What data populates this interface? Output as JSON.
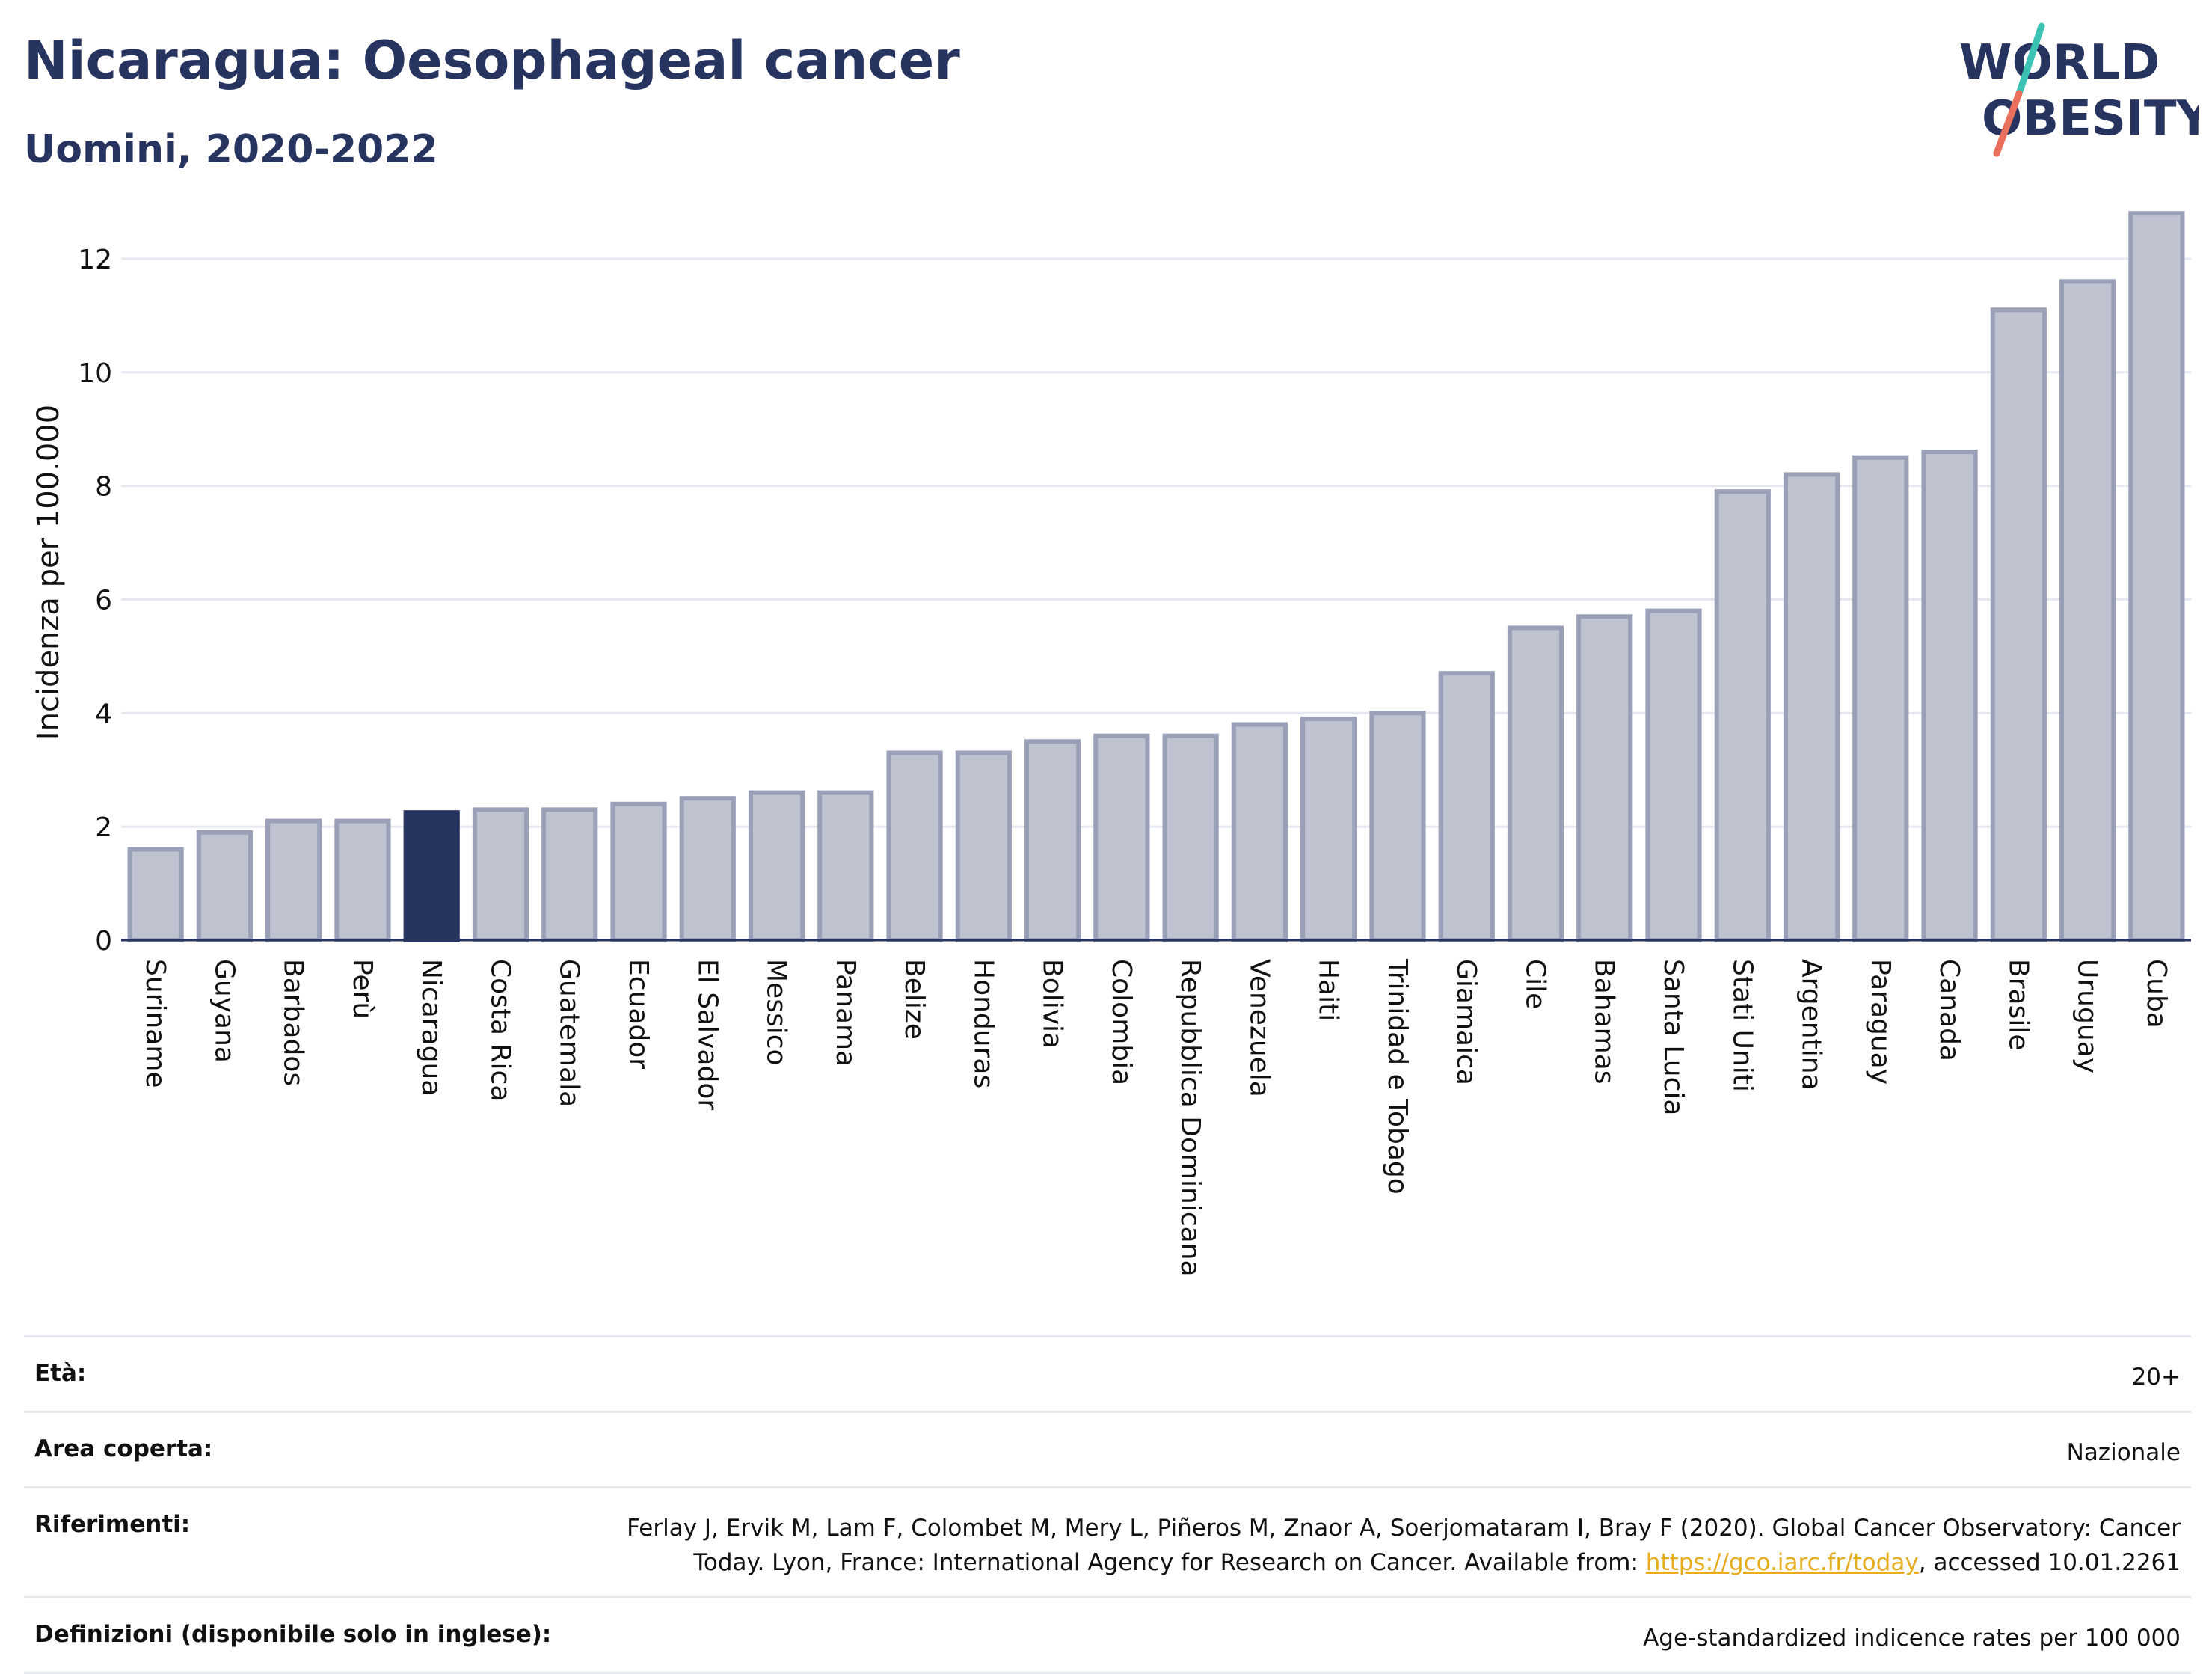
{
  "header": {
    "title": "Nicaragua: Oesophageal cancer",
    "subtitle": "Uomini, 2020-2022"
  },
  "logo": {
    "line1": "WORLD",
    "line2": "OBESITY"
  },
  "colors": {
    "highlight": "#283460",
    "bar_fill": "#bfc3d0",
    "bar_stroke": "#9aa0b7",
    "grid": "#e6e8ef",
    "logo_teal": "#3cc3b4",
    "logo_coral": "#e8705d",
    "link": "#e7ad1e"
  },
  "chart_data": {
    "type": "bar",
    "ylabel": "Incidenza per 100.000",
    "xlabel": "",
    "ylim": [
      0,
      13
    ],
    "yticks": [
      0,
      2,
      4,
      6,
      8,
      10,
      12
    ],
    "grid": true,
    "highlight": "Nicaragua",
    "categories": [
      "Suriname",
      "Guyana",
      "Barbados",
      "Perù",
      "Nicaragua",
      "Costa Rica",
      "Guatemala",
      "Ecuador",
      "El Salvador",
      "Messico",
      "Panama",
      "Belize",
      "Honduras",
      "Bolivia",
      "Colombia",
      "Repubblica Dominicana",
      "Venezuela",
      "Haiti",
      "Trinidad e Tobago",
      "Giamaica",
      "Cile",
      "Bahamas",
      "Santa Lucia",
      "Stati Uniti",
      "Argentina",
      "Paraguay",
      "Canada",
      "Brasile",
      "Uruguay",
      "Cuba"
    ],
    "values": [
      1.6,
      1.9,
      2.1,
      2.1,
      2.25,
      2.3,
      2.3,
      2.4,
      2.5,
      2.6,
      2.6,
      3.3,
      3.3,
      3.5,
      3.6,
      3.6,
      3.8,
      3.9,
      4.0,
      4.7,
      5.5,
      5.7,
      5.8,
      7.9,
      8.2,
      8.5,
      8.6,
      11.1,
      11.6,
      12.8
    ]
  },
  "meta": {
    "age": {
      "label": "Età:",
      "value": "20+"
    },
    "area": {
      "label": "Area coperta:",
      "value": "Nazionale"
    },
    "references": {
      "label": "Riferimenti:",
      "line1": "Ferlay J, Ervik M, Lam F, Colombet M, Mery L, Piñeros M, Znaor A, Soerjomataram I, Bray F (2020). Global Cancer Observatory: Cancer",
      "line2_pre": "Today. Lyon, France: International Agency for Research on Cancer. Available from: ",
      "link": "https://gco.iarc.fr/today",
      "line2_post": ", accessed 10.01.2261"
    },
    "definitions": {
      "label": "Definizioni (disponibile solo in inglese):",
      "value": "Age-standardized indicence rates per 100 000"
    }
  }
}
